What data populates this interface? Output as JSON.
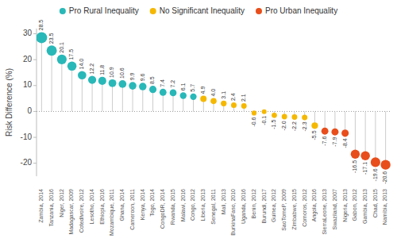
{
  "chart_data": {
    "type": "bubble",
    "ylabel": "Risk Difference (%)",
    "categories": [
      "Zambia, 2014",
      "Tanzania, 2016",
      "Niger, 2012",
      "Madagascar, 2009",
      "CotedIvoire, 2012",
      "Lesotho, 2014",
      "Ethiopia, 2016",
      "Mozambique, 2011",
      "Ghana, 2014",
      "Cameroon, 2011",
      "Kenya, 2014",
      "Togo, 2014",
      "CongoDR, 2014",
      "Rwanda, 2015",
      "Malawi, 2016",
      "Congo, 2012",
      "Liberia, 2013",
      "Senegal, 2011",
      "Mali, 2013",
      "BurkinaFaso, 2010",
      "Uganda, 2016",
      "Benin, 2012",
      "Burundi, 2017",
      "Guinea, 2012",
      "SaoTomeP, 2009",
      "Zimbabwe, 2015",
      "Comoros, 2012",
      "Angola, 2016",
      "SierraLeone, 2013",
      "Swaziland, 2007",
      "Nigeria, 2013",
      "Gabon, 2012",
      "Gambia, 2013",
      "Chad, 2015",
      "Namibia, 2013"
    ],
    "series": [
      {
        "name": "Pro Rural Inequality",
        "color": "#29b8b8",
        "values": [
          28.5,
          23.5,
          20.1,
          17.5,
          14.0,
          12.2,
          11.8,
          10.9,
          10.6,
          9.9,
          9.6,
          8.5,
          7.4,
          7.2,
          6.1,
          5.7,
          null,
          null,
          null,
          null,
          null,
          null,
          null,
          null,
          null,
          null,
          null,
          null,
          null,
          null,
          null,
          null,
          null,
          null,
          null
        ],
        "value_labels": [
          "28.5",
          "23.5",
          "20.1",
          "17.5",
          "14.0",
          "12.2",
          "11.8",
          "10.9",
          "10.6",
          "9.9",
          "9.6",
          "8.5",
          "7.4",
          "7.2",
          "6.1",
          "5.7",
          null,
          null,
          null,
          null,
          null,
          null,
          null,
          null,
          null,
          null,
          null,
          null,
          null,
          null,
          null,
          null,
          null,
          null,
          null
        ]
      },
      {
        "name": "No Significant Inequality",
        "color": "#f5b800",
        "values": [
          null,
          null,
          null,
          null,
          null,
          null,
          null,
          null,
          null,
          null,
          null,
          null,
          null,
          null,
          null,
          null,
          4.9,
          4.0,
          3.1,
          2.4,
          2.1,
          -0.6,
          -0.1,
          -1.5,
          -2.0,
          -2.2,
          -2.3,
          -5.5,
          null,
          null,
          null,
          null,
          null,
          null,
          null
        ],
        "value_labels": [
          null,
          null,
          null,
          null,
          null,
          null,
          null,
          null,
          null,
          null,
          null,
          null,
          null,
          null,
          null,
          null,
          "4.9",
          "4.0",
          "3.1",
          "2.4",
          "2.1",
          "-0.6",
          "-0.1",
          "-1.5",
          "-2.0",
          "-2.2",
          "-2.3",
          "-5.5",
          null,
          null,
          null,
          null,
          null,
          null,
          null
        ]
      },
      {
        "name": "Pro Urban Inequality",
        "color": "#e84e1b",
        "values": [
          null,
          null,
          null,
          null,
          null,
          null,
          null,
          null,
          null,
          null,
          null,
          null,
          null,
          null,
          null,
          null,
          null,
          null,
          null,
          null,
          null,
          null,
          null,
          null,
          null,
          null,
          null,
          null,
          -7.6,
          -7.9,
          -8.4,
          -16.5,
          -17.1,
          -19.6,
          -20.6
        ],
        "value_labels": [
          null,
          null,
          null,
          null,
          null,
          null,
          null,
          null,
          null,
          null,
          null,
          null,
          null,
          null,
          null,
          null,
          null,
          null,
          null,
          null,
          null,
          null,
          null,
          null,
          null,
          null,
          null,
          null,
          "-7.6",
          "-7.9",
          "-8.4",
          "-16.5",
          "-17.1",
          "-19.6",
          "-20.6"
        ]
      }
    ],
    "ylim": [
      -25,
      32
    ],
    "yticks": [
      -20,
      -10,
      0,
      10,
      20,
      30
    ],
    "legend": "top",
    "data_labels": true,
    "grid": false
  }
}
